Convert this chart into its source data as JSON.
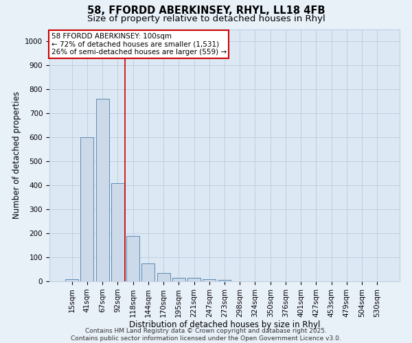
{
  "title_line1": "58, FFORDD ABERKINSEY, RHYL, LL18 4FB",
  "title_line2": "Size of property relative to detached houses in Rhyl",
  "xlabel": "Distribution of detached houses by size in Rhyl",
  "ylabel": "Number of detached properties",
  "categories": [
    "15sqm",
    "41sqm",
    "67sqm",
    "92sqm",
    "118sqm",
    "144sqm",
    "170sqm",
    "195sqm",
    "221sqm",
    "247sqm",
    "273sqm",
    "298sqm",
    "324sqm",
    "350sqm",
    "376sqm",
    "401sqm",
    "427sqm",
    "453sqm",
    "479sqm",
    "504sqm",
    "530sqm"
  ],
  "values": [
    10,
    600,
    760,
    410,
    190,
    75,
    35,
    15,
    15,
    10,
    5,
    0,
    0,
    0,
    0,
    0,
    0,
    0,
    0,
    0,
    0
  ],
  "bar_color": "#ccd9e8",
  "bar_edge_color": "#5b8ab5",
  "vline_color": "#cc0000",
  "vline_position": 3.5,
  "annotation_text": "58 FFORDD ABERKINSEY: 100sqm\n← 72% of detached houses are smaller (1,531)\n26% of semi-detached houses are larger (559) →",
  "annotation_box_color": "#ffffff",
  "annotation_box_edge": "#cc0000",
  "ylim": [
    0,
    1050
  ],
  "yticks": [
    0,
    100,
    200,
    300,
    400,
    500,
    600,
    700,
    800,
    900,
    1000
  ],
  "grid_color": "#c0cfe0",
  "bg_color": "#e8f0f8",
  "plot_bg_color": "#dce8f4",
  "footer_text": "Contains HM Land Registry data © Crown copyright and database right 2025.\nContains public sector information licensed under the Open Government Licence v3.0.",
  "title_fontsize": 10.5,
  "subtitle_fontsize": 9.5,
  "tick_fontsize": 7.5,
  "label_fontsize": 8.5,
  "ann_fontsize": 7.5,
  "footer_fontsize": 6.5,
  "bar_width": 0.85
}
